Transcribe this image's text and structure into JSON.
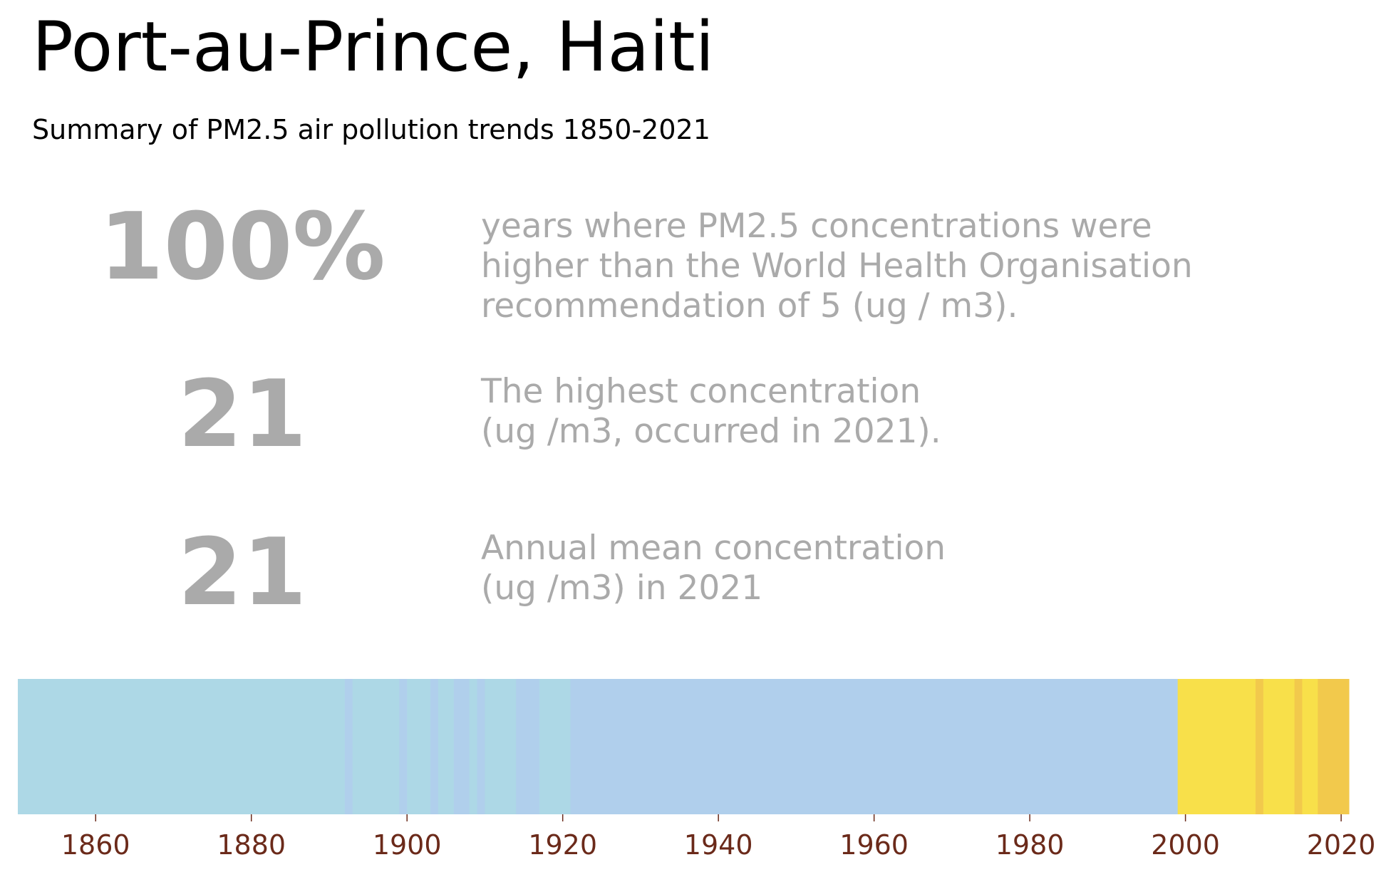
{
  "title": "Port-au-Prince, Haiti",
  "subtitle": "Summary of PM2.5 air pollution trends 1850-2021",
  "stats": [
    {
      "value": "100%",
      "text": "years where PM2.5 concentrations were\nhigher than the World Health Organisation\nrecommendation of 5 (ug / m3)."
    },
    {
      "value": "21",
      "text": "The highest concentration\n(ug /m3, occurred in 2021)."
    },
    {
      "value": "21",
      "text": "Annual mean concentration\n(ug /m3) in 2021"
    }
  ],
  "chart_data": {
    "type": "heatmap",
    "x_range": [
      1850,
      2021
    ],
    "xticks": [
      "1860",
      "1880",
      "1900",
      "1920",
      "1940",
      "1960",
      "1980",
      "2000",
      "2020"
    ],
    "tick_color": "#6b2a1a",
    "palette": {
      "lightblue": "#add8e6",
      "steelblue_light": "#b0cfec",
      "yellow": "#f8e04a",
      "amber": "#f2c94c"
    },
    "segments": [
      {
        "start": 1850,
        "end": 1892,
        "color": "lightblue"
      },
      {
        "start": 1892,
        "end": 1893,
        "color": "steelblue_light"
      },
      {
        "start": 1893,
        "end": 1899,
        "color": "lightblue"
      },
      {
        "start": 1899,
        "end": 1900,
        "color": "steelblue_light"
      },
      {
        "start": 1900,
        "end": 1903,
        "color": "lightblue"
      },
      {
        "start": 1903,
        "end": 1904,
        "color": "steelblue_light"
      },
      {
        "start": 1904,
        "end": 1906,
        "color": "lightblue"
      },
      {
        "start": 1906,
        "end": 1908,
        "color": "steelblue_light"
      },
      {
        "start": 1908,
        "end": 1909,
        "color": "lightblue"
      },
      {
        "start": 1909,
        "end": 1910,
        "color": "steelblue_light"
      },
      {
        "start": 1910,
        "end": 1914,
        "color": "lightblue"
      },
      {
        "start": 1914,
        "end": 1917,
        "color": "steelblue_light"
      },
      {
        "start": 1917,
        "end": 1921,
        "color": "lightblue"
      },
      {
        "start": 1921,
        "end": 1999,
        "color": "steelblue_light"
      },
      {
        "start": 1999,
        "end": 2009,
        "color": "yellow"
      },
      {
        "start": 2009,
        "end": 2010,
        "color": "amber"
      },
      {
        "start": 2010,
        "end": 2014,
        "color": "yellow"
      },
      {
        "start": 2014,
        "end": 2015,
        "color": "amber"
      },
      {
        "start": 2015,
        "end": 2017,
        "color": "yellow"
      },
      {
        "start": 2017,
        "end": 2021,
        "color": "amber"
      }
    ]
  }
}
